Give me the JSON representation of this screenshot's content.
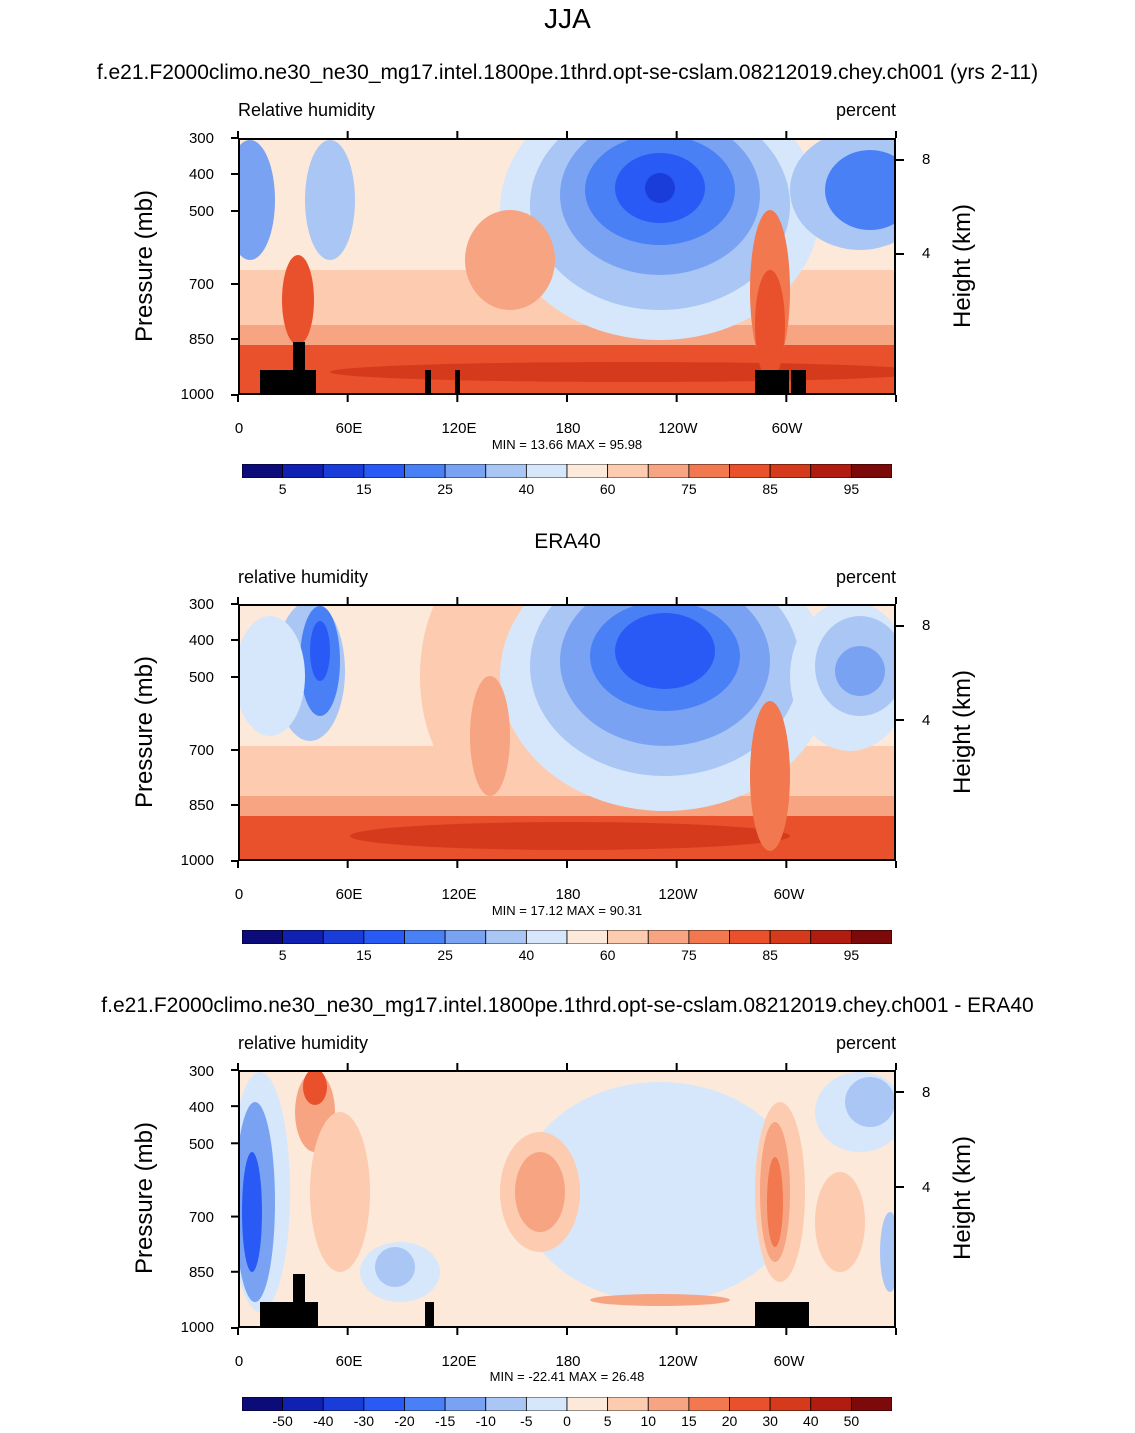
{
  "figure": {
    "main_title": "JJA",
    "panels": [
      {
        "title": "f.e21.F2000climo.ne30_ne30_mg17.intel.1800pe.1thrd.opt-se-cslam.08212019.chey.ch001 (yrs 2-11)",
        "left_label": "Relative humidity",
        "right_label": "percent",
        "minmax": "MIN =  13.66  MAX =  95.98"
      },
      {
        "title": "ERA40",
        "left_label": "relative humidity",
        "right_label": "percent",
        "minmax": "MIN =  17.12  MAX =  90.31"
      },
      {
        "title": "f.e21.F2000climo.ne30_ne30_mg17.intel.1800pe.1thrd.opt-se-cslam.08212019.chey.ch001 - ERA40",
        "left_label": "relative humidity",
        "right_label": "percent",
        "minmax": "MIN = -22.41  MAX = 26.48"
      }
    ]
  },
  "chart_data": [
    {
      "type": "heatmap",
      "title": "f.e21.F2000climo.ne30_ne30_mg17.intel.1800pe.1thrd.opt-se-cslam.08212019.chey.ch001 (yrs 2-11)",
      "variable": "Relative humidity",
      "units": "percent",
      "xlabel": "",
      "ylabel": "Pressure (mb)",
      "ylabel_right": "Height (km)",
      "x_ticks": [
        "0",
        "60E",
        "120E",
        "180",
        "120W",
        "60W"
      ],
      "y_ticks": [
        "300",
        "400",
        "500",
        "700",
        "850",
        "1000"
      ],
      "y_right_ticks": [
        "8",
        "4"
      ],
      "ylim": [
        1000,
        300
      ],
      "min": 13.66,
      "max": 95.98,
      "colorbar_labels": [
        "5",
        "15",
        "25",
        "40",
        "60",
        "75",
        "85",
        "95"
      ]
    },
    {
      "type": "heatmap",
      "title": "ERA40",
      "variable": "relative humidity",
      "units": "percent",
      "xlabel": "",
      "ylabel": "Pressure (mb)",
      "ylabel_right": "Height (km)",
      "x_ticks": [
        "0",
        "60E",
        "120E",
        "180",
        "120W",
        "60W"
      ],
      "y_ticks": [
        "300",
        "400",
        "500",
        "700",
        "850",
        "1000"
      ],
      "y_right_ticks": [
        "8",
        "4"
      ],
      "ylim": [
        1000,
        300
      ],
      "min": 17.12,
      "max": 90.31,
      "colorbar_labels": [
        "5",
        "15",
        "25",
        "40",
        "60",
        "75",
        "85",
        "95"
      ]
    },
    {
      "type": "heatmap",
      "title": "f.e21.F2000climo.ne30_ne30_mg17.intel.1800pe.1thrd.opt-se-cslam.08212019.chey.ch001 - ERA40",
      "variable": "relative humidity",
      "units": "percent",
      "xlabel": "",
      "ylabel": "Pressure (mb)",
      "ylabel_right": "Height (km)",
      "x_ticks": [
        "0",
        "60E",
        "120E",
        "180",
        "120W",
        "60W"
      ],
      "y_ticks": [
        "300",
        "400",
        "500",
        "700",
        "850",
        "1000"
      ],
      "y_right_ticks": [
        "8",
        "4"
      ],
      "ylim": [
        1000,
        300
      ],
      "min": -22.41,
      "max": 26.48,
      "colorbar_labels": [
        "-50",
        "-40",
        "-30",
        "-20",
        "-15",
        "-10",
        "-5",
        "0",
        "5",
        "10",
        "15",
        "20",
        "30",
        "40",
        "50"
      ]
    }
  ],
  "colorbar_colors": [
    "#0b0b7a",
    "#1020b0",
    "#1a3cd8",
    "#2a5af5",
    "#4a80f5",
    "#79a3f2",
    "#aac6f5",
    "#d6e7fb",
    "#fde9d9",
    "#fccbb0",
    "#f7a483",
    "#f1784f",
    "#e8512c",
    "#d63a1c",
    "#b01d10",
    "#7d0a0a"
  ]
}
